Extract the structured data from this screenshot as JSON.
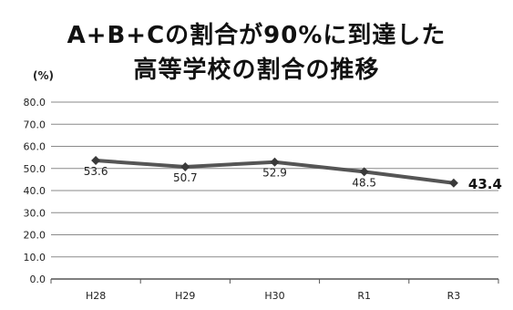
{
  "chart_data": {
    "type": "line",
    "title_lines": [
      "A+B+Cの割合が90%に到達した",
      "高等学校の割合の推移"
    ],
    "ylabel": "(%)",
    "categories": [
      "H28",
      "H29",
      "H30",
      "R1",
      "R3"
    ],
    "series": [
      {
        "values": [
          53.6,
          50.7,
          52.9,
          48.5,
          43.4
        ],
        "data_labels": [
          "53.6",
          "50.7",
          "52.9",
          "48.5",
          "43.4"
        ],
        "color": "#555555"
      }
    ],
    "y_ticks": [
      "0.0",
      "10.0",
      "20.0",
      "30.0",
      "40.0",
      "50.0",
      "60.0",
      "70.0",
      "80.0"
    ],
    "ylim": [
      0,
      80
    ],
    "grid": true,
    "legend": "none"
  }
}
